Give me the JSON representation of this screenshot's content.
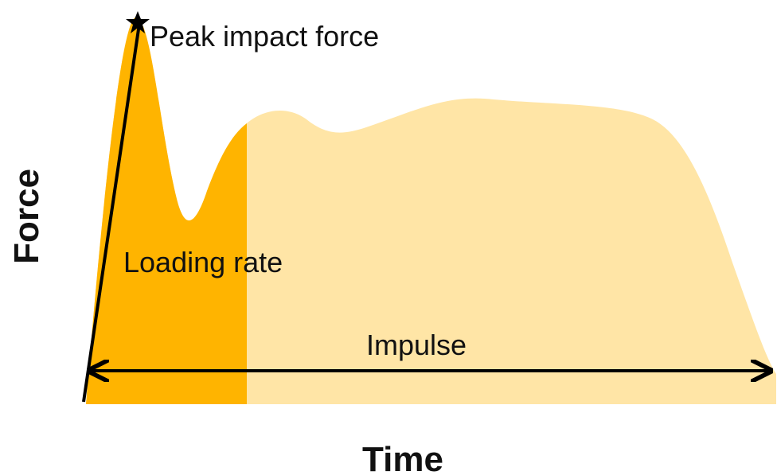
{
  "labels": {
    "peak": "Peak impact force",
    "loading": "Loading rate",
    "impulse": "Impulse"
  },
  "axes": {
    "y": "Force",
    "x": "Time"
  }
}
